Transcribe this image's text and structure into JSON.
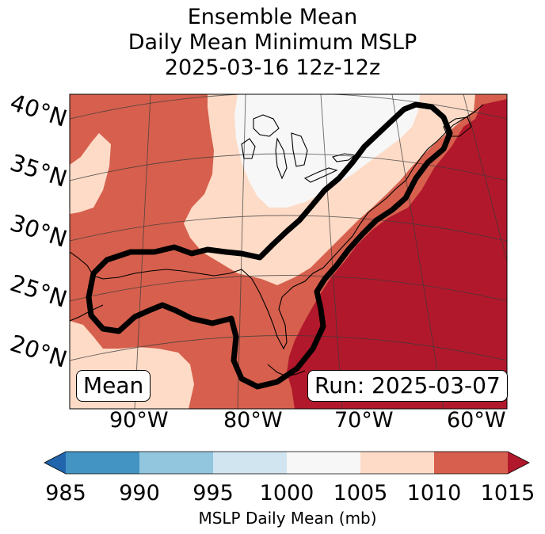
{
  "title": {
    "line1": "Ensemble Mean",
    "line2": "Daily Mean Minimum MSLP",
    "line3": "2025-03-16 12z-12z"
  },
  "map": {
    "lat_labels": [
      "40°N",
      "35°N",
      "30°N",
      "25°N",
      "20°N"
    ],
    "lon_labels": [
      "90°W",
      "80°W",
      "70°W",
      "60°W"
    ],
    "mean_box": "Mean",
    "run_box": "Run: 2025-03-07",
    "fill_colors": {
      "c1000_1005": "#f7f7f7",
      "c1005_1010": "#fddbc7",
      "c1010_1015": "#d6604d",
      "c1015_plus": "#b2182b"
    },
    "outline_color": "#000000"
  },
  "colorbar": {
    "ticks": [
      "985",
      "990",
      "995",
      "1000",
      "1005",
      "1010",
      "1015"
    ],
    "colors": [
      "#2166ac",
      "#4393c3",
      "#92c5de",
      "#d1e5f0",
      "#f7f7f7",
      "#fddbc7",
      "#d6604d",
      "#b2182b"
    ],
    "label": "MSLP Daily Mean (mb)"
  }
}
